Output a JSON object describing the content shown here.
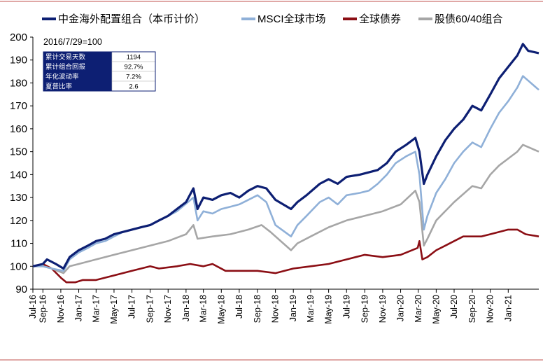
{
  "chart_data": {
    "type": "line",
    "title": "",
    "xlabel": "",
    "ylabel": "",
    "ylim": [
      90,
      200
    ],
    "yticks": [
      90,
      100,
      110,
      120,
      130,
      140,
      150,
      160,
      170,
      180,
      190,
      200
    ],
    "x_tick_labels": [
      "Jul-16",
      "Sep-16",
      "Nov-16",
      "Jan-17",
      "Mar-17",
      "May-17",
      "Jul-17",
      "Sep-17",
      "Nov-17",
      "Jan-18",
      "Mar-18",
      "May-18",
      "Jul-18",
      "Sep-18",
      "Nov-18",
      "Jan-19",
      "Mar-19",
      "May-19",
      "Jul-19",
      "Sep-19",
      "Nov-19",
      "Jan-20",
      "Mar-20",
      "May-20",
      "Jul-20",
      "Sep-20",
      "Nov-20",
      "Jan-21"
    ],
    "x_range": [
      "2016-07-29",
      "2021-04-15"
    ],
    "note": "2016/7/29=100",
    "legend_position": "top",
    "grid": false,
    "series": [
      {
        "name": "中金海外配置组合（本币计价）",
        "color": "#0d1f73",
        "points": [
          [
            "2016-07-29",
            100
          ],
          [
            "2016-09-01",
            101
          ],
          [
            "2016-09-15",
            103
          ],
          [
            "2016-10-15",
            101
          ],
          [
            "2016-11-10",
            99
          ],
          [
            "2016-12-01",
            104
          ],
          [
            "2017-01-01",
            107
          ],
          [
            "2017-02-01",
            109
          ],
          [
            "2017-03-01",
            111
          ],
          [
            "2017-04-01",
            112
          ],
          [
            "2017-05-01",
            114
          ],
          [
            "2017-06-01",
            115
          ],
          [
            "2017-07-01",
            116
          ],
          [
            "2017-08-01",
            117
          ],
          [
            "2017-09-01",
            118
          ],
          [
            "2017-10-01",
            120
          ],
          [
            "2017-11-01",
            122
          ],
          [
            "2017-12-01",
            125
          ],
          [
            "2018-01-01",
            128
          ],
          [
            "2018-01-26",
            134
          ],
          [
            "2018-02-09",
            125
          ],
          [
            "2018-03-01",
            130
          ],
          [
            "2018-04-01",
            129
          ],
          [
            "2018-05-01",
            131
          ],
          [
            "2018-06-01",
            132
          ],
          [
            "2018-07-01",
            130
          ],
          [
            "2018-08-01",
            133
          ],
          [
            "2018-09-01",
            135
          ],
          [
            "2018-10-01",
            134
          ],
          [
            "2018-11-01",
            129
          ],
          [
            "2018-12-24",
            125
          ],
          [
            "2019-01-15",
            128
          ],
          [
            "2019-02-15",
            131
          ],
          [
            "2019-04-01",
            136
          ],
          [
            "2019-05-01",
            138
          ],
          [
            "2019-06-01",
            136
          ],
          [
            "2019-07-01",
            139
          ],
          [
            "2019-08-15",
            140
          ],
          [
            "2019-09-15",
            141
          ],
          [
            "2019-10-15",
            142
          ],
          [
            "2019-11-15",
            145
          ],
          [
            "2019-12-15",
            150
          ],
          [
            "2020-01-20",
            153
          ],
          [
            "2020-02-20",
            156
          ],
          [
            "2020-03-05",
            150
          ],
          [
            "2020-03-20",
            136
          ],
          [
            "2020-04-01",
            140
          ],
          [
            "2020-05-01",
            148
          ],
          [
            "2020-06-01",
            155
          ],
          [
            "2020-07-01",
            160
          ],
          [
            "2020-08-01",
            164
          ],
          [
            "2020-09-01",
            170
          ],
          [
            "2020-10-01",
            168
          ],
          [
            "2020-11-01",
            175
          ],
          [
            "2020-12-01",
            182
          ],
          [
            "2021-01-01",
            187
          ],
          [
            "2021-02-01",
            192
          ],
          [
            "2021-02-20",
            197
          ],
          [
            "2021-03-10",
            194
          ],
          [
            "2021-04-15",
            193
          ]
        ]
      },
      {
        "name": "MSCI全球市场",
        "color": "#8fb0d8",
        "points": [
          [
            "2016-07-29",
            100
          ],
          [
            "2016-09-01",
            100
          ],
          [
            "2016-10-01",
            99
          ],
          [
            "2016-11-10",
            98
          ],
          [
            "2016-12-01",
            103
          ],
          [
            "2017-01-01",
            106
          ],
          [
            "2017-02-01",
            108
          ],
          [
            "2017-03-01",
            110
          ],
          [
            "2017-04-01",
            111
          ],
          [
            "2017-05-01",
            113
          ],
          [
            "2017-06-01",
            115
          ],
          [
            "2017-07-01",
            116
          ],
          [
            "2017-08-01",
            117
          ],
          [
            "2017-09-01",
            118
          ],
          [
            "2017-10-01",
            120
          ],
          [
            "2017-11-01",
            122
          ],
          [
            "2017-12-01",
            124
          ],
          [
            "2018-01-26",
            130
          ],
          [
            "2018-02-09",
            120
          ],
          [
            "2018-03-01",
            124
          ],
          [
            "2018-04-01",
            123
          ],
          [
            "2018-05-01",
            125
          ],
          [
            "2018-06-01",
            126
          ],
          [
            "2018-07-01",
            127
          ],
          [
            "2018-08-01",
            129
          ],
          [
            "2018-09-01",
            131
          ],
          [
            "2018-10-01",
            128
          ],
          [
            "2018-11-01",
            118
          ],
          [
            "2018-12-24",
            113
          ],
          [
            "2019-01-15",
            118
          ],
          [
            "2019-02-15",
            122
          ],
          [
            "2019-04-01",
            128
          ],
          [
            "2019-05-01",
            130
          ],
          [
            "2019-06-01",
            127
          ],
          [
            "2019-07-01",
            131
          ],
          [
            "2019-08-15",
            132
          ],
          [
            "2019-09-15",
            133
          ],
          [
            "2019-10-15",
            136
          ],
          [
            "2019-11-15",
            140
          ],
          [
            "2019-12-15",
            145
          ],
          [
            "2020-01-20",
            148
          ],
          [
            "2020-02-20",
            150
          ],
          [
            "2020-03-05",
            140
          ],
          [
            "2020-03-20",
            116
          ],
          [
            "2020-04-01",
            122
          ],
          [
            "2020-05-01",
            132
          ],
          [
            "2020-06-01",
            138
          ],
          [
            "2020-07-01",
            145
          ],
          [
            "2020-08-01",
            150
          ],
          [
            "2020-09-01",
            154
          ],
          [
            "2020-10-01",
            152
          ],
          [
            "2020-11-01",
            160
          ],
          [
            "2020-12-01",
            167
          ],
          [
            "2021-01-01",
            172
          ],
          [
            "2021-02-01",
            178
          ],
          [
            "2021-02-20",
            183
          ],
          [
            "2021-03-10",
            181
          ],
          [
            "2021-04-15",
            177
          ]
        ]
      },
      {
        "name": "全球债券",
        "color": "#8b0e14",
        "points": [
          [
            "2016-07-29",
            100
          ],
          [
            "2016-09-01",
            101
          ],
          [
            "2016-10-01",
            99
          ],
          [
            "2016-11-01",
            95
          ],
          [
            "2016-11-20",
            93
          ],
          [
            "2016-12-20",
            93
          ],
          [
            "2017-01-15",
            94
          ],
          [
            "2017-03-01",
            94
          ],
          [
            "2017-05-01",
            96
          ],
          [
            "2017-07-01",
            98
          ],
          [
            "2017-09-01",
            100
          ],
          [
            "2017-10-01",
            99
          ],
          [
            "2017-12-01",
            100
          ],
          [
            "2018-01-15",
            101
          ],
          [
            "2018-03-01",
            100
          ],
          [
            "2018-04-01",
            101
          ],
          [
            "2018-05-15",
            98
          ],
          [
            "2018-07-01",
            98
          ],
          [
            "2018-09-01",
            98
          ],
          [
            "2018-11-01",
            97
          ],
          [
            "2019-01-01",
            99
          ],
          [
            "2019-03-01",
            100
          ],
          [
            "2019-05-01",
            101
          ],
          [
            "2019-07-01",
            103
          ],
          [
            "2019-09-01",
            105
          ],
          [
            "2019-11-01",
            104
          ],
          [
            "2020-01-01",
            105
          ],
          [
            "2020-02-28",
            108
          ],
          [
            "2020-03-05",
            111
          ],
          [
            "2020-03-15",
            103
          ],
          [
            "2020-04-01",
            104
          ],
          [
            "2020-05-01",
            107
          ],
          [
            "2020-06-01",
            109
          ],
          [
            "2020-07-01",
            111
          ],
          [
            "2020-08-01",
            113
          ],
          [
            "2020-09-01",
            113
          ],
          [
            "2020-10-01",
            113
          ],
          [
            "2020-11-01",
            114
          ],
          [
            "2020-12-01",
            115
          ],
          [
            "2021-01-01",
            116
          ],
          [
            "2021-02-01",
            116
          ],
          [
            "2021-03-01",
            114
          ],
          [
            "2021-04-15",
            113
          ]
        ]
      },
      {
        "name": "股债60/40组合",
        "color": "#a6a6a6",
        "points": [
          [
            "2016-07-29",
            100
          ],
          [
            "2016-09-01",
            100
          ],
          [
            "2016-10-01",
            99
          ],
          [
            "2016-11-10",
            97
          ],
          [
            "2016-12-01",
            100
          ],
          [
            "2017-01-01",
            101
          ],
          [
            "2017-03-01",
            103
          ],
          [
            "2017-05-01",
            105
          ],
          [
            "2017-07-01",
            107
          ],
          [
            "2017-09-01",
            109
          ],
          [
            "2017-11-01",
            111
          ],
          [
            "2018-01-01",
            114
          ],
          [
            "2018-01-26",
            118
          ],
          [
            "2018-02-09",
            112
          ],
          [
            "2018-04-01",
            113
          ],
          [
            "2018-06-01",
            114
          ],
          [
            "2018-08-01",
            116
          ],
          [
            "2018-09-15",
            118
          ],
          [
            "2018-10-15",
            115
          ],
          [
            "2018-12-24",
            107
          ],
          [
            "2019-01-15",
            110
          ],
          [
            "2019-03-01",
            113
          ],
          [
            "2019-05-01",
            117
          ],
          [
            "2019-07-01",
            120
          ],
          [
            "2019-09-01",
            122
          ],
          [
            "2019-11-01",
            124
          ],
          [
            "2020-01-01",
            127
          ],
          [
            "2020-02-20",
            133
          ],
          [
            "2020-03-05",
            128
          ],
          [
            "2020-03-20",
            109
          ],
          [
            "2020-04-01",
            112
          ],
          [
            "2020-05-01",
            120
          ],
          [
            "2020-07-01",
            128
          ],
          [
            "2020-09-01",
            135
          ],
          [
            "2020-10-01",
            134
          ],
          [
            "2020-11-01",
            140
          ],
          [
            "2020-12-01",
            144
          ],
          [
            "2021-01-01",
            147
          ],
          [
            "2021-02-01",
            150
          ],
          [
            "2021-02-20",
            153
          ],
          [
            "2021-03-10",
            152
          ],
          [
            "2021-04-15",
            150
          ]
        ]
      }
    ],
    "stats_table": {
      "rows": [
        {
          "label": "累计交易天数",
          "value": "1194"
        },
        {
          "label": "累计组合回报",
          "value": "92.7%"
        },
        {
          "label": "年化波动率",
          "value": "7.2%"
        },
        {
          "label": "夏普比率",
          "value": "2.6"
        }
      ],
      "label_bg": "#0d1f73"
    }
  }
}
